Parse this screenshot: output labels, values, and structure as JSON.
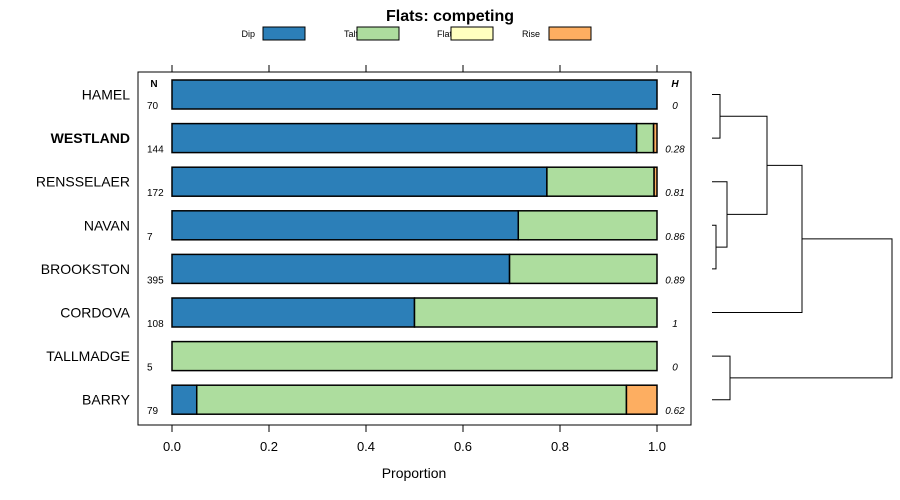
{
  "chart_data": {
    "type": "bar",
    "stacked": true,
    "orientation": "horizontal",
    "title": "Flats: competing",
    "xlabel": "Proportion",
    "ylabel": "",
    "xlim": [
      0,
      1
    ],
    "xticks": [
      "0.0",
      "0.2",
      "0.4",
      "0.6",
      "0.8",
      "1.0"
    ],
    "n_header": "N",
    "h_header": "H",
    "legend": [
      {
        "name": "Dip",
        "color": "#2c7fb8"
      },
      {
        "name": "Talf",
        "color": "#addd9e"
      },
      {
        "name": "Flat",
        "color": "#ffffbf"
      },
      {
        "name": "Rise",
        "color": "#fdae61"
      }
    ],
    "categories": [
      "HAMEL",
      "WESTLAND",
      "RENSSELAER",
      "NAVAN",
      "BROOKSTON",
      "CORDOVA",
      "TALLMADGE",
      "BARRY"
    ],
    "bold_categories": [
      "WESTLAND"
    ],
    "n": [
      "70",
      "144",
      "172",
      "7",
      "395",
      "108",
      "5",
      "79"
    ],
    "h": [
      "0",
      "0.28",
      "0.81",
      "0.86",
      "0.89",
      "1",
      "0",
      "0.62"
    ],
    "series": [
      {
        "name": "Dip",
        "values": [
          1.0,
          0.958,
          0.773,
          0.714,
          0.696,
          0.5,
          0.0,
          0.051
        ]
      },
      {
        "name": "Talf",
        "values": [
          0.0,
          0.035,
          0.221,
          0.286,
          0.304,
          0.5,
          1.0,
          0.886
        ]
      },
      {
        "name": "Flat",
        "values": [
          0.0,
          0.0,
          0.0,
          0.0,
          0.0,
          0.0,
          0.0,
          0.0
        ]
      },
      {
        "name": "Rise",
        "values": [
          0.0,
          0.007,
          0.006,
          0.0,
          0.0,
          0.0,
          0.0,
          0.063
        ]
      }
    ],
    "dendrogram": "hierarchical clustering of rows shown at right"
  }
}
